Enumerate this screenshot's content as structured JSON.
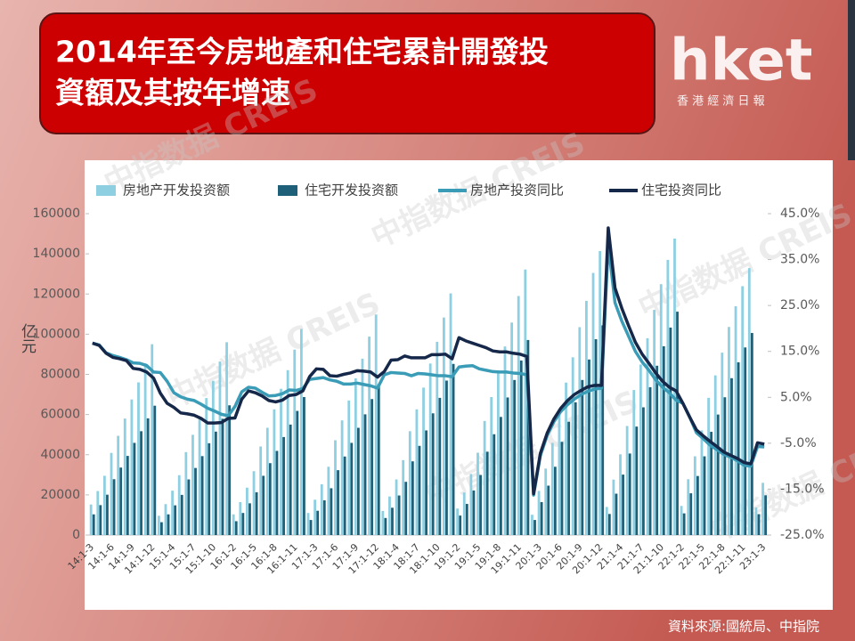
{
  "header": {
    "title_lines": [
      "2014年至今房地產和住宅累計開發投",
      "資額及其按年增速"
    ]
  },
  "logo": {
    "brand": "hket",
    "tagline": "香 港 經 濟 日 報"
  },
  "source": "資料來源:國統局、中指院",
  "chart_data": {
    "type": "combo",
    "watermark": "中指数据 CREIS",
    "ylabel": "亿元",
    "categories": [
      "14:1-3",
      null,
      null,
      "14:1-6",
      null,
      null,
      "14:1-9",
      null,
      null,
      "14:1-12",
      null,
      null,
      "15:1-4",
      null,
      null,
      "15:1-7",
      null,
      null,
      "15:1-10",
      null,
      null,
      "16:1-2",
      null,
      null,
      "16:1-5",
      null,
      null,
      "16:1-8",
      null,
      null,
      "16:1-11",
      null,
      null,
      "17:1-3",
      null,
      null,
      "17:1-6",
      null,
      null,
      "17:1-9",
      null,
      null,
      "17:1-12",
      null,
      null,
      "18:1-4",
      null,
      null,
      "18:1-7",
      null,
      null,
      "18:1-10",
      null,
      null,
      "19:1-2",
      null,
      null,
      "19:1-5",
      null,
      null,
      "19:1-8",
      null,
      null,
      "19:1-11",
      null,
      null,
      "20:1-3",
      null,
      null,
      "20:1-6",
      null,
      null,
      "20:1-9",
      null,
      null,
      "20:1-12",
      null,
      null,
      "21:1-4",
      null,
      null,
      "21:1-7",
      null,
      null,
      "21:1-10",
      null,
      null,
      "22:1-2",
      null,
      null,
      "22:1-5",
      null,
      null,
      "22:1-8",
      null,
      null,
      "22:1-11",
      null,
      null,
      "23:1-3"
    ],
    "ylim": [
      0,
      160000
    ],
    "yticks": [
      0,
      20000,
      40000,
      60000,
      80000,
      100000,
      120000,
      140000,
      160000
    ],
    "y2lim": [
      -25,
      45
    ],
    "y2ticks": [
      {
        "value": -25,
        "label": "-25.0%"
      },
      {
        "value": -15,
        "label": "-15.0%"
      },
      {
        "value": -5,
        "label": "-5.0%"
      },
      {
        "value": 5,
        "label": "5.0%"
      },
      {
        "value": 15,
        "label": "15.0%"
      },
      {
        "value": 25,
        "label": "25.0%"
      },
      {
        "value": 35,
        "label": "35.0%"
      },
      {
        "value": 45,
        "label": "45.0%"
      }
    ],
    "series": [
      {
        "name": "房地产开发投资额",
        "type": "bar",
        "color": "#8ed0e2",
        "values": [
          15200,
          21900,
          29500,
          40900,
          49400,
          58000,
          67500,
          76000,
          85500,
          95000,
          9600,
          15400,
          22100,
          29800,
          41300,
          49900,
          58600,
          68200,
          76800,
          86400,
          96000,
          10300,
          16400,
          23600,
          31800,
          44100,
          53400,
          62600,
          72800,
          82100,
          92300,
          102600,
          11000,
          17600,
          25300,
          34000,
          47200,
          57100,
          67000,
          78000,
          87800,
          98800,
          109800,
          12000,
          19200,
          27700,
          37300,
          51700,
          62600,
          73400,
          85400,
          96200,
          108300,
          120300,
          13200,
          21200,
          30400,
          41000,
          56800,
          68700,
          80600,
          93900,
          105800,
          119000,
          132200,
          10100,
          21960,
          33100,
          45900,
          62800,
          75900,
          88500,
          103500,
          116600,
          130500,
          141400,
          14000,
          27600,
          40200,
          54300,
          72200,
          84900,
          98000,
          112100,
          124900,
          137000,
          147600,
          14500,
          27800,
          39200,
          52100,
          68300,
          79500,
          90800,
          103600,
          113900,
          123900,
          132900,
          13700,
          26000
        ]
      },
      {
        "name": "住宅开发投资额",
        "type": "bar",
        "color": "#1f6079",
        "values": [
          10300,
          14900,
          20100,
          27800,
          33600,
          39400,
          45900,
          51700,
          58100,
          64400,
          6400,
          10300,
          14800,
          20000,
          27700,
          33400,
          39300,
          45700,
          51500,
          57900,
          64600,
          6900,
          11000,
          15800,
          21300,
          29500,
          35800,
          41900,
          48800,
          55000,
          61800,
          68700,
          7500,
          12100,
          17300,
          23300,
          32300,
          39100,
          45900,
          53400,
          60100,
          67700,
          75100,
          8500,
          13600,
          19700,
          26500,
          36700,
          44400,
          52100,
          60600,
          68300,
          76900,
          85200,
          9700,
          15500,
          22200,
          29900,
          41500,
          50200,
          58800,
          68500,
          77200,
          86900,
          97100,
          7500,
          16400,
          24600,
          34000,
          46400,
          56400,
          66100,
          77200,
          87400,
          97500,
          104400,
          10500,
          20600,
          30100,
          40600,
          54000,
          63600,
          73600,
          84300,
          94000,
          103300,
          111200,
          10800,
          20800,
          29400,
          39200,
          51400,
          60000,
          68600,
          78100,
          86000,
          93400,
          100600,
          10400,
          19800
        ]
      },
      {
        "name": "房地产投资同比",
        "type": "line",
        "axis": "y2",
        "color": "#3a9cb6",
        "values": [
          16.8,
          16.4,
          14.7,
          14.1,
          13.7,
          13.2,
          12.5,
          12.4,
          11.9,
          10.5,
          10.4,
          8.5,
          6.0,
          5.1,
          4.6,
          4.3,
          3.5,
          2.6,
          2.0,
          1.3,
          1.0,
          3.0,
          6.2,
          7.2,
          7.0,
          6.1,
          5.3,
          5.4,
          5.8,
          6.6,
          6.5,
          6.9,
          8.9,
          9.1,
          9.3,
          8.8,
          8.5,
          7.9,
          7.9,
          8.1,
          7.8,
          7.5,
          7.0,
          9.9,
          10.4,
          10.3,
          10.2,
          9.7,
          10.2,
          10.1,
          9.9,
          9.7,
          9.7,
          9.5,
          11.6,
          11.8,
          11.9,
          11.2,
          10.9,
          10.6,
          10.5,
          10.5,
          10.3,
          10.2,
          9.9,
          -16.3,
          -7.7,
          -3.3,
          -0.3,
          1.9,
          3.4,
          4.6,
          5.6,
          6.3,
          6.8,
          7.0,
          38.3,
          25.6,
          21.6,
          18.3,
          15.0,
          12.7,
          10.9,
          8.8,
          7.2,
          6.0,
          4.4,
          3.7,
          0.7,
          -2.7,
          -4.0,
          -5.4,
          -6.4,
          -7.4,
          -8.0,
          -8.8,
          -9.8,
          -10.0,
          -5.7,
          -5.8
        ]
      },
      {
        "name": "住宅投资同比",
        "type": "line",
        "axis": "y2",
        "color": "#16284a",
        "values": [
          16.8,
          16.3,
          14.6,
          13.7,
          13.4,
          13.0,
          11.3,
          11.1,
          10.5,
          9.2,
          5.9,
          3.7,
          2.8,
          1.6,
          1.4,
          1.1,
          0.4,
          -0.6,
          -0.6,
          -0.5,
          0.4,
          0.5,
          4.6,
          6.4,
          6.0,
          5.3,
          4.3,
          4.0,
          4.4,
          5.4,
          5.6,
          6.4,
          9.5,
          11.2,
          11.1,
          9.7,
          9.6,
          10.0,
          10.3,
          10.8,
          10.7,
          10.5,
          9.4,
          10.6,
          13.1,
          13.2,
          14.0,
          13.6,
          13.6,
          13.6,
          14.3,
          14.3,
          14.4,
          13.4,
          18.0,
          17.3,
          16.8,
          16.3,
          15.8,
          15.1,
          14.9,
          14.9,
          14.6,
          14.4,
          13.9,
          -16.0,
          -7.2,
          -2.8,
          0.3,
          2.6,
          4.3,
          5.6,
          6.5,
          7.3,
          7.6,
          7.6,
          41.9,
          28.8,
          24.4,
          20.6,
          17.0,
          14.4,
          12.4,
          10.3,
          8.5,
          7.2,
          6.4,
          3.7,
          0.7,
          -2.1,
          -3.4,
          -4.6,
          -5.7,
          -6.9,
          -7.6,
          -8.3,
          -9.2,
          -9.5,
          -4.9,
          -5.2
        ]
      }
    ]
  }
}
